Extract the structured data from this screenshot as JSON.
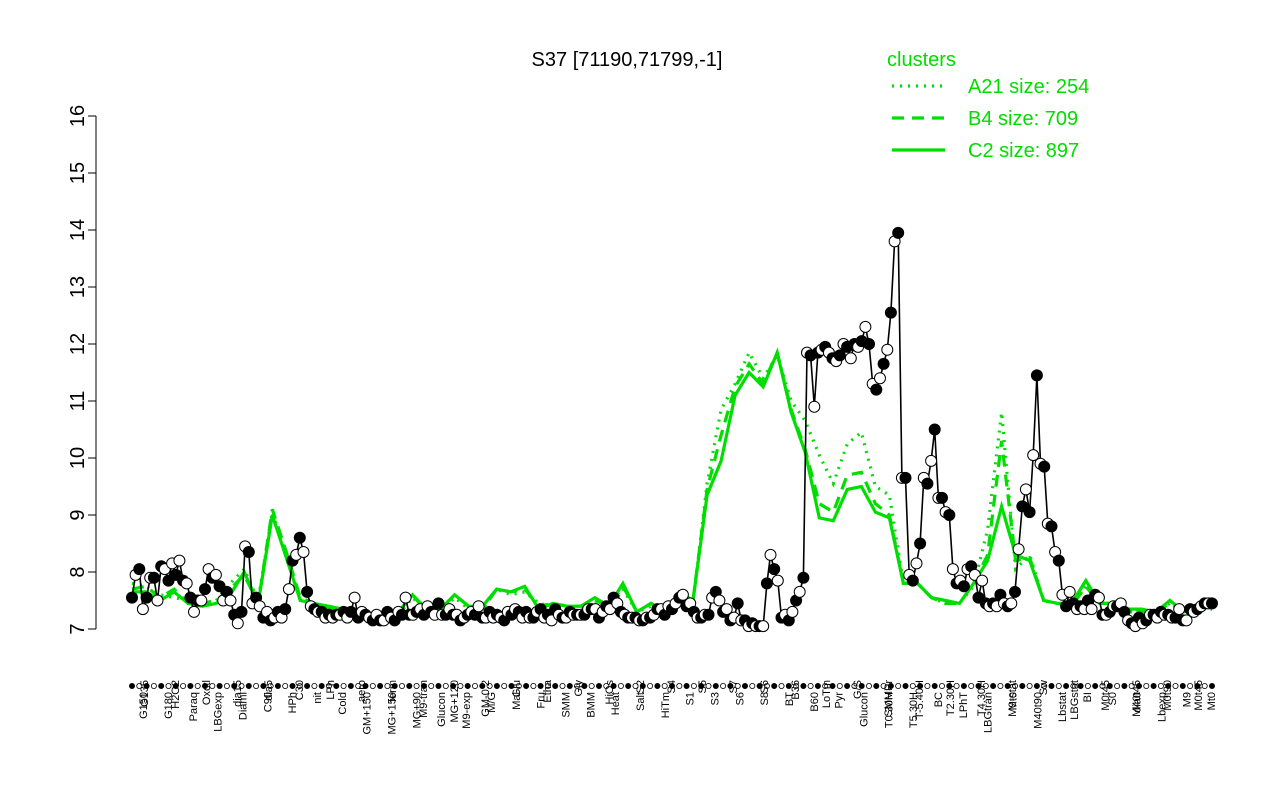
{
  "chart_data": {
    "type": "line",
    "title": "S37 [71190,71799,-1]",
    "xlabel": "",
    "ylabel": "",
    "ylim": [
      7,
      16
    ],
    "yticks": [
      7,
      8,
      9,
      10,
      11,
      12,
      13,
      14,
      15,
      16
    ],
    "grid": false,
    "legend": {
      "title": "clusters",
      "placement": "top-right",
      "entries": [
        {
          "label": "A21 size: 254",
          "style": "dotted"
        },
        {
          "label": "B4 size: 709",
          "style": "dashed"
        },
        {
          "label": "C2 size: 897",
          "style": "solid"
        }
      ]
    },
    "colors": {
      "clusters": "#00dd00",
      "points": "#000000"
    },
    "x_labels": [
      "G150",
      "G135",
      "G180",
      "H2O2",
      "Paraq",
      "Oxctl",
      "LBGexp",
      "dia15",
      "Diami",
      "dia5",
      "C90",
      "C30",
      "LPh",
      "HPh",
      "aero",
      "nit",
      "ferm",
      "Cold",
      "GM+150",
      "M9-tran",
      "MG+150",
      "MG+120",
      "MG+90",
      "MG+60",
      "MG+45",
      "MG+30",
      "MG+15",
      "MG-0.2",
      "GM-0.2",
      "Glucon",
      "GM+15",
      "GM+30",
      "GM+45",
      "GM+60",
      "GM+90",
      "GM+120",
      "GM+150",
      "M9-exp",
      "M/G",
      "Mal",
      "Fru",
      "Glu",
      "SMM",
      "BMM",
      "Heat",
      "Etha",
      "Salt",
      "Gly",
      "HiTm",
      "HiOs",
      "S1",
      "S2",
      "S3",
      "S4",
      "S5",
      "S6",
      "S7",
      "S8",
      "BT",
      "B36",
      "B60",
      "LoTm",
      "Pyr",
      "G/S",
      "Glucon",
      "SMMPr",
      "T-5.40H",
      "T-4.40H",
      "T-3.40H",
      "T-2.40H",
      "T-1.40H",
      "T0.30H",
      "T1.30H",
      "T2.30H",
      "T3.30H",
      "T4.30H",
      "T5.30H",
      "M9-stat",
      "BC",
      "Sw",
      "LPhT",
      "LBGstat",
      "LBGtran",
      "M0t45",
      "M40t45",
      "Lbtran",
      "Mt0",
      "M40t90",
      "M0t90",
      "Lbstat",
      "BI",
      "S0",
      "M0t45",
      "dia0",
      "Lbexp",
      "M9",
      "Mt0"
    ],
    "x_labels_upper": [
      "G135",
      "H2O2",
      "Oxctl",
      "dia15",
      "dia5",
      "C30",
      "LPh",
      "aero",
      "ferm",
      "M9-tran",
      "MG+120",
      "GM-0.2",
      "Glu",
      "Etha",
      "Gly",
      "HiOs",
      "S2",
      "S4",
      "S5",
      "S7",
      "S6",
      "B36",
      "LoTm",
      "G/S",
      "SMMPr",
      "T-5.40H",
      "T2.30H",
      "T4.30H",
      "M9-stat",
      "Sw",
      "LBGstat",
      "M0t45",
      "M40t45",
      "M0t90",
      "M0t45"
    ],
    "x_labels_lower": [
      "G150",
      "G180",
      "Paraq",
      "LBGexp",
      "Diami",
      "C90",
      "HPh",
      "nit",
      "Cold",
      "GM+150",
      "MG+150",
      "MG+90",
      "Glucon",
      "M9-exp",
      "M/G",
      "Mal",
      "Fru",
      "SMM",
      "BMM",
      "Heat",
      "Salt",
      "HiTm",
      "S1",
      "S3",
      "S6",
      "S8",
      "BT",
      "B60",
      "Pyr",
      "Glucon",
      "T0.30H",
      "T5.30H",
      "BC",
      "LPhT",
      "LBGtran",
      "Mt0",
      "M40t90",
      "Lbstat",
      "BI",
      "S0",
      "dia0",
      "Lbexp",
      "M9",
      "Mt0"
    ],
    "series": [
      {
        "values": [
          7.55,
          7.95,
          8.05,
          7.35,
          7.55,
          7.9,
          7.9,
          7.5,
          8.1,
          8.05,
          7.85,
          8.15,
          7.95,
          8.2,
          7.85,
          7.8,
          7.55,
          7.3,
          7.5,
          7.5,
          7.7,
          8.05,
          7.9,
          7.95,
          7.75,
          7.5,
          7.65,
          7.5,
          7.25,
          7.1,
          7.3,
          8.45,
          8.35,
          7.45,
          7.55,
          7.4,
          7.2,
          7.3,
          7.15,
          7.2,
          7.3,
          7.2,
          7.35,
          7.7,
          8.2,
          8.3,
          8.6,
          8.35,
          7.65,
          7.4,
          7.35,
          7.3,
          7.3,
          7.2,
          7.25,
          7.2,
          7.25,
          7.25,
          7.3,
          7.2,
          7.3,
          7.55,
          7.2,
          7.3,
          7.25,
          7.2,
          7.15,
          7.25,
          7.15,
          7.15,
          7.3,
          7.2,
          7.15,
          7.3,
          7.25,
          7.55,
          7.25,
          7.25,
          7.3,
          7.35,
          7.25,
          7.4,
          7.3,
          7.25,
          7.45,
          7.25,
          7.25,
          7.35,
          7.25,
          7.25,
          7.15,
          7.2,
          7.25,
          7.3,
          7.25,
          7.4,
          7.2,
          7.2,
          7.3,
          7.2,
          7.25,
          7.2,
          7.15,
          7.3,
          7.25,
          7.35,
          7.3,
          7.2,
          7.3,
          7.2,
          7.2,
          7.3,
          7.35,
          7.2,
          7.25,
          7.15,
          7.35,
          7.25,
          7.2,
          7.2,
          7.3,
          7.25,
          7.25,
          7.25,
          7.25,
          7.35,
          7.35,
          7.35,
          7.2,
          7.3,
          7.4,
          7.35,
          7.55,
          7.45,
          7.3,
          7.25,
          7.2,
          7.2,
          7.2,
          7.15,
          7.15,
          7.2,
          7.2,
          7.25,
          7.35,
          7.35,
          7.25,
          7.4,
          7.35,
          7.45,
          7.55,
          7.6,
          7.4,
          7.45,
          7.3,
          7.2,
          7.2,
          7.25,
          7.25,
          7.55,
          7.65,
          7.5,
          7.3,
          7.35,
          7.15,
          7.2,
          7.45,
          7.15,
          7.15,
          7.05,
          7.1,
          7.05,
          7.05,
          7.05,
          7.8,
          8.3,
          8.05,
          7.85,
          7.2,
          7.25,
          7.15,
          7.3,
          7.5,
          7.65,
          7.9,
          11.85,
          11.8,
          10.9,
          11.85,
          11.9,
          11.95,
          11.85,
          11.75,
          11.7,
          11.8,
          12.0,
          11.95,
          11.75,
          12.0,
          11.95,
          12.05,
          12.3,
          12.0,
          11.3,
          11.2,
          11.4,
          11.65,
          11.9,
          12.55,
          13.8,
          13.95,
          9.65,
          9.65,
          7.95,
          7.85,
          8.15,
          8.5,
          9.65,
          9.55,
          9.95,
          10.5,
          9.3,
          9.3,
          9.05,
          9.0,
          8.05,
          7.8,
          7.85,
          7.75,
          8.05,
          8.1,
          7.95,
          7.55,
          7.85,
          7.45,
          7.4,
          7.45,
          7.4,
          7.6,
          7.45,
          7.4,
          7.45,
          7.65,
          8.4,
          9.15,
          9.45,
          9.05,
          10.05,
          11.45,
          9.9,
          9.85,
          8.85,
          8.8,
          8.35,
          8.2,
          7.6,
          7.4,
          7.65,
          7.45,
          7.35,
          7.4,
          7.35,
          7.5,
          7.35,
          7.6,
          7.55,
          7.25,
          7.25,
          7.3,
          7.4,
          7.4,
          7.45,
          7.3,
          7.15,
          7.1,
          7.05,
          7.2,
          7.1,
          7.15,
          7.25,
          7.25,
          7.2,
          7.3,
          7.25,
          7.25,
          7.2,
          7.2,
          7.35,
          7.15,
          7.15,
          7.35,
          7.3,
          7.35,
          7.4,
          7.45,
          7.45,
          7.45
        ]
      },
      {
        "name": "A21 size: 254",
        "values": [
          7.8,
          7.75,
          7.6,
          7.55,
          7.5,
          7.45,
          7.5,
          7.8,
          8.05,
          7.5,
          9.05,
          8.3,
          7.5,
          7.45,
          7.35,
          7.35,
          7.3,
          7.2,
          7.2,
          7.25,
          7.55,
          7.3,
          7.3,
          7.55,
          7.35,
          7.35,
          7.7,
          7.6,
          7.65,
          7.45,
          7.4,
          7.4,
          7.35,
          7.5,
          7.35,
          7.7,
          7.3,
          7.4,
          7.25,
          7.55,
          7.45,
          9.55,
          10.85,
          11.3,
          11.85,
          11.4,
          11.8,
          11.0,
          10.65,
          10.05,
          9.55,
          10.25,
          10.45,
          9.5,
          9.35,
          7.8,
          7.8,
          7.55,
          7.45,
          7.45,
          7.75,
          8.75,
          10.8,
          8.05,
          8.3,
          7.5,
          7.45,
          7.4,
          7.75,
          7.45,
          7.4,
          7.3,
          7.3,
          7.3,
          7.45,
          7.25,
          7.35,
          7.35
        ]
      },
      {
        "name": "B4 size: 709",
        "values": [
          7.7,
          7.75,
          7.55,
          7.7,
          7.45,
          7.45,
          7.5,
          7.7,
          7.95,
          7.45,
          9.1,
          8.35,
          7.55,
          7.45,
          7.35,
          7.35,
          7.3,
          7.25,
          7.3,
          7.3,
          7.6,
          7.3,
          7.35,
          7.6,
          7.4,
          7.35,
          7.7,
          7.65,
          7.7,
          7.4,
          7.45,
          7.4,
          7.4,
          7.5,
          7.4,
          7.75,
          7.3,
          7.45,
          7.3,
          7.6,
          7.5,
          9.45,
          10.4,
          11.25,
          11.65,
          11.3,
          11.85,
          10.85,
          10.15,
          9.2,
          9.05,
          9.7,
          9.75,
          9.2,
          9.0,
          7.8,
          7.8,
          7.55,
          7.45,
          7.45,
          7.8,
          8.3,
          10.3,
          8.2,
          8.25,
          7.5,
          7.45,
          7.4,
          7.75,
          7.45,
          7.45,
          7.3,
          7.3,
          7.3,
          7.45,
          7.3,
          7.35,
          7.4
        ]
      },
      {
        "name": "C2 size: 897",
        "values": [
          7.65,
          7.65,
          7.5,
          7.65,
          7.45,
          7.4,
          7.45,
          7.6,
          8.0,
          7.45,
          9.0,
          8.25,
          7.5,
          7.45,
          7.4,
          7.35,
          7.3,
          7.25,
          7.3,
          7.3,
          7.6,
          7.35,
          7.35,
          7.6,
          7.4,
          7.4,
          7.7,
          7.65,
          7.75,
          7.35,
          7.45,
          7.4,
          7.4,
          7.55,
          7.4,
          7.8,
          7.3,
          7.45,
          7.3,
          7.65,
          7.5,
          9.35,
          9.95,
          11.1,
          11.5,
          11.25,
          11.85,
          10.8,
          10.1,
          8.95,
          8.9,
          9.45,
          9.5,
          9.05,
          8.95,
          7.8,
          7.8,
          7.55,
          7.5,
          7.45,
          7.8,
          8.2,
          9.15,
          8.3,
          8.2,
          7.5,
          7.45,
          7.45,
          7.85,
          7.45,
          7.45,
          7.35,
          7.35,
          7.3,
          7.5,
          7.3,
          7.4,
          7.45
        ]
      }
    ]
  }
}
